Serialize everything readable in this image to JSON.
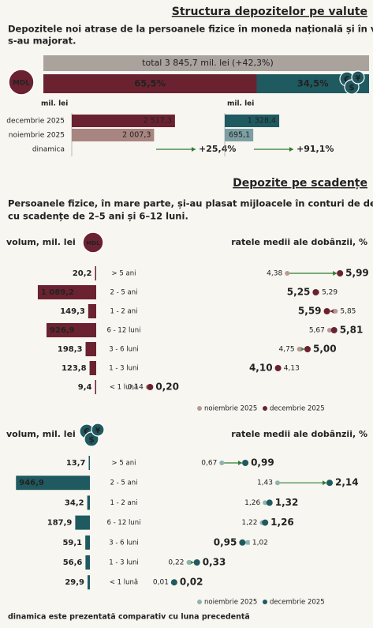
{
  "currency_structure": {
    "title": "Structura depozitelor pe valute",
    "subtitle_lines": [
      "Depozitele noi atrase de la persoanele fizice în moneda națională și în valută",
      "s-au majorat."
    ],
    "total_label": "total 3 845,7 mil. lei",
    "total_change": "(+42,3%)",
    "shares": {
      "values": [
        65.5,
        34.5
      ],
      "value_labels": [
        "65,5%",
        "34,5%"
      ]
    },
    "mdl_badge": "MDL",
    "fx_icon": [
      "€",
      "$",
      "¥"
    ],
    "row_labels": [
      "decembrie 2025",
      "noiembrie 2025",
      "dinamica"
    ],
    "mdl": {
      "unit": "mil. lei",
      "values": [
        2517.3,
        2007.3
      ],
      "value_labels": [
        "2 517,3",
        "2 007,3"
      ],
      "dynamics": "+25,4%",
      "color": "#6b2230",
      "light_color": "#a88580"
    },
    "fx": {
      "unit": "mil. lei",
      "values": [
        1328.4,
        695.1
      ],
      "value_labels": [
        "1 328,4",
        "695,1"
      ],
      "dynamics": "+91,1%",
      "color": "#1f5a60",
      "light_color": "#7c9fa3"
    }
  },
  "maturity": {
    "title": "Depozite pe scadențe",
    "subtitle_lines": [
      "Persoanele fizice, în mare parte, și-au plasat mijloacele în conturi de depozit",
      "cu scadențe de 2–5 ani și 6–12 luni."
    ],
    "categories": [
      "> 5 ani",
      "2 - 5 ani",
      "1 - 2 ani",
      "6 - 12 luni",
      "3 - 6 luni",
      "1 - 3 luni",
      "< 1 lună"
    ],
    "panels": [
      {
        "volume_title": "volum, mil. lei",
        "badge": "MDL",
        "rates_title": "ratele medii ale dobânzii, %",
        "color": "#6b2230",
        "light_color": "#b89a94",
        "volumes": {
          "values": [
            20.2,
            1089.2,
            149.3,
            926.9,
            198.3,
            123.8,
            9.4
          ],
          "value_labels": [
            "20,2",
            "1 089,2",
            "149,3",
            "926,9",
            "198,3",
            "123,8",
            "9,4"
          ]
        },
        "rates": [
          {
            "name": "noiembrie 2025",
            "values": [
              4.38,
              5.29,
              5.85,
              5.67,
              4.75,
              4.13,
              0.14
            ],
            "value_labels": [
              "4,38",
              "5,29",
              "5,85",
              "5,67",
              "4,75",
              "4,13",
              "0,14"
            ]
          },
          {
            "name": "decembrie 2025",
            "values": [
              5.99,
              5.25,
              5.59,
              5.81,
              5.0,
              4.1,
              0.2
            ],
            "value_labels": [
              "5,99",
              "5,25",
              "5,59",
              "5,81",
              "5,00",
              "4,10",
              "0,20"
            ]
          }
        ]
      },
      {
        "volume_title": "volum, mil. lei",
        "icon": [
          "€",
          "$",
          "¥"
        ],
        "rates_title": "ratele medii ale dobânzii, %",
        "color": "#1f5a60",
        "light_color": "#8fb3b0",
        "volumes": {
          "values": [
            13.7,
            946.9,
            34.2,
            187.9,
            59.1,
            56.6,
            29.9
          ],
          "value_labels": [
            "13,7",
            "946,9",
            "34,2",
            "187,9",
            "59,1",
            "56,6",
            "29,9"
          ]
        },
        "rates": [
          {
            "name": "noiembrie 2025",
            "values": [
              0.67,
              1.43,
              1.26,
              1.22,
              1.02,
              0.22,
              0.01
            ],
            "value_labels": [
              "0,67",
              "1,43",
              "1,26",
              "1,22",
              "1,02",
              "0,22",
              "0,01"
            ]
          },
          {
            "name": "decembrie 2025",
            "values": [
              0.99,
              2.14,
              1.32,
              1.26,
              0.95,
              0.33,
              0.02
            ],
            "value_labels": [
              "0,99",
              "2,14",
              "1,32",
              "1,26",
              "0,95",
              "0,33",
              "0,02"
            ]
          }
        ]
      }
    ]
  },
  "footnote": "dinamica este prezentată comparativ cu luna precedentă"
}
